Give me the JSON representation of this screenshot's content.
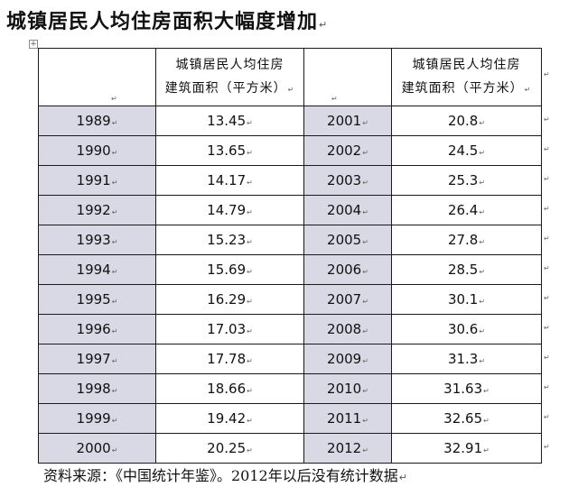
{
  "title": "城镇居民人均住房面积大幅度增加",
  "table": {
    "header_line_1": "城镇居民人均住房",
    "header_line_2": "建筑面积（平方米）",
    "rows": [
      {
        "year_left": "1989",
        "area_left": "13.45",
        "year_right": "2001",
        "area_right": "20.8"
      },
      {
        "year_left": "1990",
        "area_left": "13.65",
        "year_right": "2002",
        "area_right": "24.5"
      },
      {
        "year_left": "1991",
        "area_left": "14.17",
        "year_right": "2003",
        "area_right": "25.3"
      },
      {
        "year_left": "1992",
        "area_left": "14.79",
        "year_right": "2004",
        "area_right": "26.4"
      },
      {
        "year_left": "1993",
        "area_left": "15.23",
        "year_right": "2005",
        "area_right": "27.8"
      },
      {
        "year_left": "1994",
        "area_left": "15.69",
        "year_right": "2006",
        "area_right": "28.5"
      },
      {
        "year_left": "1995",
        "area_left": "16.29",
        "year_right": "2007",
        "area_right": "30.1"
      },
      {
        "year_left": "1996",
        "area_left": "17.03",
        "year_right": "2008",
        "area_right": "30.6"
      },
      {
        "year_left": "1997",
        "area_left": "17.78",
        "year_right": "2009",
        "area_right": "31.3"
      },
      {
        "year_left": "1998",
        "area_left": "18.66",
        "year_right": "2010",
        "area_right": "31.63"
      },
      {
        "year_left": "1999",
        "area_left": "19.42",
        "year_right": "2011",
        "area_right": "32.65"
      },
      {
        "year_left": "2000",
        "area_left": "20.25",
        "year_right": "2012",
        "area_right": "32.91"
      }
    ]
  },
  "source_note": "资料来源：《中国统计年鉴》。2012年以后没有统计数据",
  "paragraph_mark": "↵",
  "table_anchor_glyph": "+",
  "colors": {
    "year_cell_background": "#d9d9e6",
    "border": "#1a1a1a",
    "text": "#111111"
  }
}
